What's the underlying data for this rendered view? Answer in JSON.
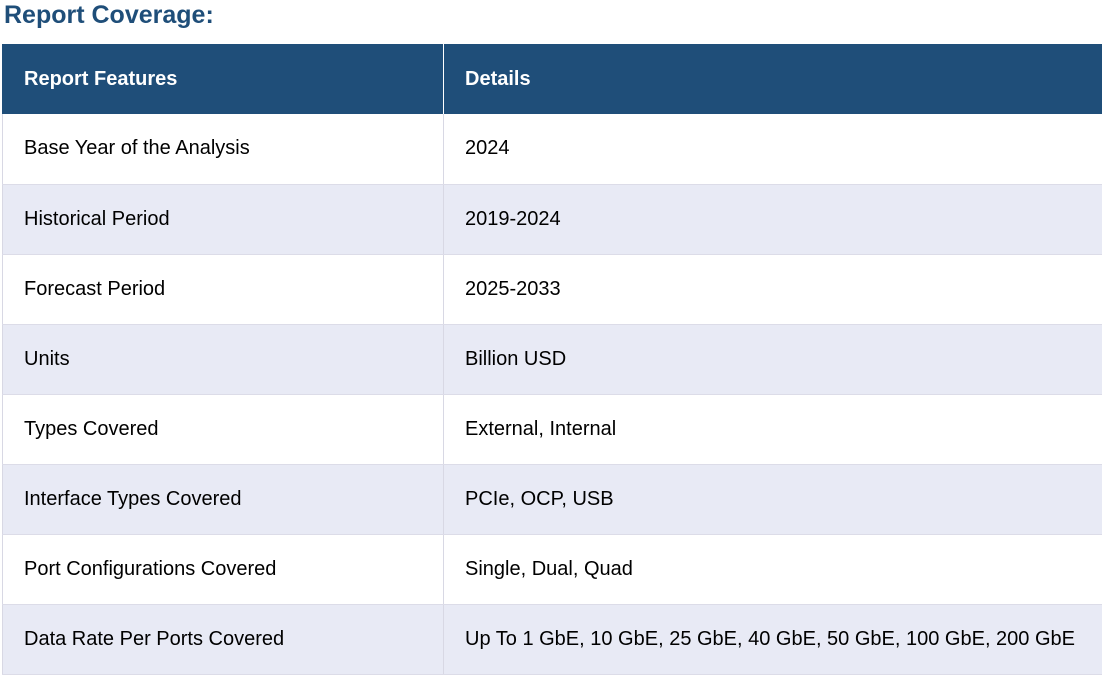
{
  "title": "Report Coverage:",
  "table": {
    "headers": [
      "Report Features",
      "Details"
    ],
    "rows": [
      [
        "Base Year of the Analysis",
        "2024"
      ],
      [
        "Historical Period",
        "2019-2024"
      ],
      [
        "Forecast Period",
        "2025-2033"
      ],
      [
        "Units",
        "Billion USD"
      ],
      [
        "Types Covered",
        "External, Internal"
      ],
      [
        "Interface Types Covered",
        "PCIe, OCP, USB"
      ],
      [
        "Port Configurations Covered",
        "Single, Dual, Quad"
      ],
      [
        "Data Rate Per Ports Covered",
        "Up To 1 GbE, 10 GbE, 25 GbE, 40 GbE, 50 GbE, 100 GbE, 200 GbE"
      ]
    ]
  },
  "colors": {
    "header_bg": "#1f4e79",
    "title": "#1f4e79",
    "stripe": "#e8eaf5"
  }
}
